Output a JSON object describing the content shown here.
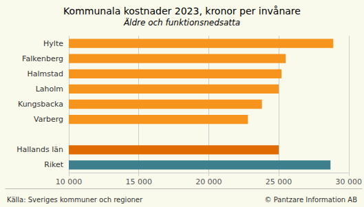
{
  "chart_data": {
    "type": "bar",
    "orientation": "horizontal",
    "title": "Kommunala kostnader 2023, kronor per invånare",
    "subtitle": "Äldre och funktionsnedsatta",
    "categories": [
      "Hylte",
      "Falkenberg",
      "Halmstad",
      "Laholm",
      "Kungsbacka",
      "Varberg",
      null,
      "Hallands län",
      "Riket"
    ],
    "values": [
      28900,
      25500,
      25200,
      25000,
      23800,
      22800,
      null,
      25000,
      28700
    ],
    "colors": [
      "#F7941D",
      "#F7941D",
      "#F7941D",
      "#F7941D",
      "#F7941D",
      "#F7941D",
      "#FAFAEC",
      "#E06B00",
      "#3D7F8C"
    ],
    "xlim": [
      10000,
      30000
    ],
    "xticks": [
      {
        "value": 10000,
        "label": "10 000"
      },
      {
        "value": 15000,
        "label": "15 000"
      },
      {
        "value": 20000,
        "label": "20 000"
      },
      {
        "value": 25000,
        "label": "25 000"
      },
      {
        "value": 30000,
        "label": "30 000"
      }
    ],
    "grid": true,
    "annotations": [
      "Källa: Sveriges kommuner och regioner",
      "© Pantzare Information AB"
    ]
  }
}
